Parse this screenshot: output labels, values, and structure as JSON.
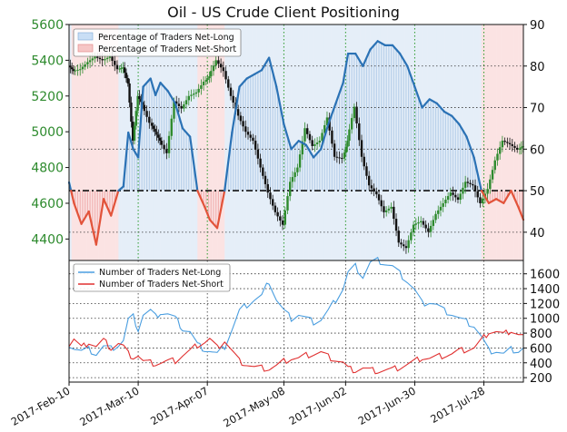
{
  "chart_data": [
    {
      "type": "line",
      "title": "Oil - US Crude Client Positioning",
      "left_axis": {
        "ticks": [
          4400,
          4600,
          4800,
          5000,
          5200,
          5400,
          5600
        ],
        "range": [
          4280,
          5600
        ],
        "color": "#2d8a2d"
      },
      "right_axis": {
        "ticks": [
          40,
          50,
          60,
          70,
          80,
          90
        ],
        "range": [
          33.2,
          90
        ]
      },
      "threshold_line": 50,
      "legend": {
        "placement": "top-left",
        "entries": [
          "Percentage of Traders Net-Long",
          "Percentage of Traders Net-Short"
        ]
      },
      "x_labels": [
        "2017-Feb-10",
        "2017-Mar-10",
        "2017-Apr-07",
        "2017-May-08",
        "2017-Jun-02",
        "2017-Jun-30",
        "2017-Jul-28"
      ],
      "x_days": [
        0,
        28,
        56,
        87,
        112,
        140,
        168
      ],
      "x_range": [
        0,
        184
      ],
      "percent_net_long": {
        "x": [
          0,
          2,
          5,
          8,
          11,
          14,
          17,
          20,
          22,
          24,
          26,
          28,
          30,
          33,
          35,
          37,
          40,
          43,
          46,
          49,
          52,
          55,
          57,
          60,
          63,
          66,
          69,
          72,
          75,
          78,
          81,
          84,
          87,
          90,
          93,
          96,
          99,
          102,
          105,
          108,
          111,
          113,
          116,
          119,
          122,
          125,
          128,
          131,
          134,
          137,
          140,
          143,
          146,
          149,
          152,
          155,
          158,
          161,
          164,
          167,
          170,
          173,
          176,
          179,
          182,
          184
        ],
        "y": [
          52,
          47,
          42,
          45,
          37,
          48,
          44,
          50,
          51,
          64,
          60,
          58,
          75,
          77,
          73,
          76,
          74,
          71,
          65,
          63,
          50,
          46,
          43,
          41,
          50,
          64,
          75,
          77,
          78,
          79,
          82,
          75,
          66,
          60,
          62,
          61,
          58,
          60,
          66,
          71,
          76,
          83,
          83,
          80,
          84,
          86,
          85,
          85,
          83,
          80,
          75,
          70,
          72,
          71,
          69,
          68,
          66,
          63,
          58,
          50,
          47,
          48,
          47,
          50,
          46,
          43
        ]
      },
      "price": {
        "x": [
          0,
          2,
          5,
          8,
          11,
          14,
          17,
          20,
          22,
          24,
          26,
          28,
          30,
          33,
          35,
          37,
          40,
          43,
          46,
          49,
          52,
          55,
          57,
          60,
          63,
          66,
          69,
          72,
          75,
          78,
          81,
          84,
          87,
          90,
          93,
          96,
          99,
          102,
          105,
          108,
          111,
          113,
          116,
          119,
          122,
          125,
          128,
          131,
          134,
          137,
          140,
          143,
          146,
          149,
          152,
          155,
          158,
          161,
          164,
          167,
          170,
          173,
          176,
          179,
          182,
          184
        ],
        "y": [
          5370,
          5340,
          5350,
          5390,
          5420,
          5400,
          5420,
          5350,
          5360,
          5270,
          4950,
          5200,
          5150,
          5050,
          5000,
          4950,
          4880,
          5170,
          5130,
          5200,
          5220,
          5280,
          5310,
          5400,
          5340,
          5200,
          5090,
          5000,
          4950,
          4800,
          4660,
          4550,
          4480,
          4720,
          4800,
          5020,
          4920,
          4950,
          5080,
          4860,
          4850,
          4950,
          5140,
          4860,
          4700,
          4650,
          4550,
          4580,
          4380,
          4350,
          4480,
          4500,
          4440,
          4540,
          4600,
          4660,
          4620,
          4720,
          4700,
          4600,
          4680,
          4840,
          4950,
          4930,
          4900,
          4920
        ]
      },
      "line_colors": {
        "net_long": "#2b72b5",
        "net_short": "#e2533a",
        "price_up": "#2d8a2d",
        "price_down": "#111111"
      }
    },
    {
      "type": "line",
      "legend": {
        "placement": "top-left",
        "entries": [
          "Number of Traders Net-Long",
          "Number of Traders Net-Short"
        ]
      },
      "right_axis": {
        "ticks": [
          200,
          400,
          600,
          800,
          1000,
          1200,
          1400,
          1600
        ],
        "range": [
          140,
          1780
        ]
      },
      "series": [
        {
          "name": "Number of Traders Net-Long",
          "x": [
            0,
            2,
            5,
            8,
            11,
            14,
            17,
            20,
            22,
            24,
            26,
            28,
            30,
            33,
            35,
            37,
            40,
            43,
            46,
            49,
            52,
            55,
            57,
            60,
            63,
            66,
            69,
            72,
            75,
            78,
            81,
            84,
            87,
            90,
            93,
            96,
            99,
            102,
            105,
            108,
            111,
            113,
            116,
            119,
            122,
            125,
            128,
            131,
            134,
            137,
            140,
            143,
            146,
            149,
            152,
            155,
            158,
            161,
            164,
            167,
            170,
            173,
            176,
            179,
            182,
            184
          ],
          "y": [
            650,
            600,
            560,
            580,
            520,
            620,
            590,
            640,
            700,
            980,
            1020,
            850,
            1050,
            1100,
            1020,
            1080,
            1060,
            1000,
            860,
            820,
            640,
            580,
            560,
            520,
            620,
            850,
            1100,
            1180,
            1250,
            1300,
            1500,
            1250,
            1100,
            1000,
            1050,
            1000,
            950,
            980,
            1100,
            1250,
            1400,
            1620,
            1700,
            1560,
            1750,
            1780,
            1740,
            1700,
            1600,
            1500,
            1380,
            1200,
            1220,
            1180,
            1100,
            1060,
            1000,
            950,
            900,
            750,
            560,
            560,
            520,
            580,
            560,
            600
          ]
        },
        {
          "name": "Number of Traders Net-Short",
          "x": [
            0,
            2,
            5,
            8,
            11,
            14,
            17,
            20,
            22,
            24,
            26,
            28,
            30,
            33,
            35,
            37,
            40,
            43,
            46,
            49,
            52,
            55,
            57,
            60,
            63,
            66,
            69,
            72,
            75,
            78,
            81,
            84,
            87,
            90,
            93,
            96,
            99,
            102,
            105,
            108,
            111,
            113,
            116,
            119,
            122,
            125,
            128,
            131,
            134,
            137,
            140,
            143,
            146,
            149,
            152,
            155,
            158,
            161,
            164,
            167,
            170,
            173,
            176,
            179,
            182,
            184
          ],
          "y": [
            640,
            720,
            600,
            680,
            620,
            700,
            600,
            660,
            620,
            520,
            480,
            500,
            420,
            400,
            390,
            400,
            420,
            430,
            500,
            560,
            640,
            680,
            720,
            600,
            700,
            560,
            420,
            380,
            340,
            330,
            320,
            360,
            420,
            460,
            460,
            500,
            520,
            540,
            480,
            440,
            400,
            320,
            300,
            330,
            300,
            290,
            300,
            310,
            340,
            380,
            420,
            470,
            460,
            480,
            500,
            520,
            560,
            580,
            600,
            700,
            820,
            820,
            780,
            840,
            780,
            760
          ]
        }
      ],
      "line_colors": {
        "net_long": "#4a9ee0",
        "net_short": "#e03030"
      }
    }
  ]
}
